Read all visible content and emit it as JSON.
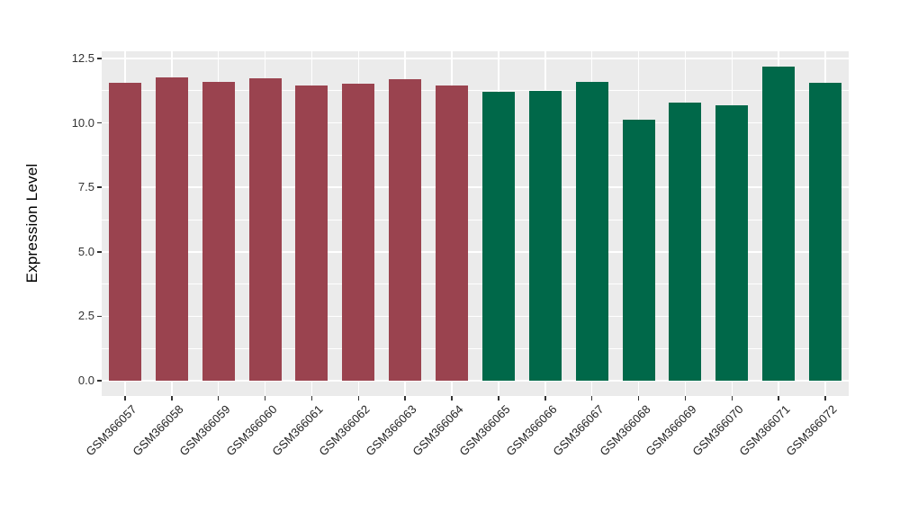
{
  "chart_data": {
    "type": "bar",
    "title": "",
    "xlabel": "",
    "ylabel": "Expression Level",
    "categories": [
      "GSM366057",
      "GSM366058",
      "GSM366059",
      "GSM366060",
      "GSM366061",
      "GSM366062",
      "GSM366063",
      "GSM366064",
      "GSM366065",
      "GSM366066",
      "GSM366067",
      "GSM366068",
      "GSM366069",
      "GSM366070",
      "GSM366071",
      "GSM366072"
    ],
    "values": [
      11.55,
      11.77,
      11.61,
      11.73,
      11.46,
      11.53,
      11.7,
      11.45,
      11.2,
      11.24,
      11.6,
      10.14,
      10.8,
      10.7,
      12.17,
      11.55
    ],
    "groups": [
      {
        "name": "group-1",
        "color": "#9A434F",
        "start_index": 0,
        "end_index": 7
      },
      {
        "name": "group-2",
        "color": "#006849",
        "start_index": 8,
        "end_index": 15
      }
    ],
    "yticks": [
      0.0,
      2.5,
      5.0,
      7.5,
      10.0,
      12.5
    ],
    "ytick_labels": [
      "0.0",
      "2.5",
      "5.0",
      "7.5",
      "10.0",
      "12.5"
    ],
    "yticks_minor": [
      1.25,
      3.75,
      6.25,
      8.75,
      11.25
    ],
    "ylim": [
      -0.6,
      12.77
    ],
    "legend": "none",
    "grid": {
      "horizontal": "major+minor",
      "vertical": "major-at-category-centers",
      "color": "#FFFFFF"
    },
    "x_label_rotation_deg": 45
  },
  "style_colors": {
    "panel_background": "#EBEBEB",
    "gridline": "#FFFFFF",
    "bar_group_1": "#9A434F",
    "bar_group_2": "#006849",
    "axis_text": "#333333",
    "axis_title": "#000000",
    "figure_background": "#FFFFFF"
  }
}
